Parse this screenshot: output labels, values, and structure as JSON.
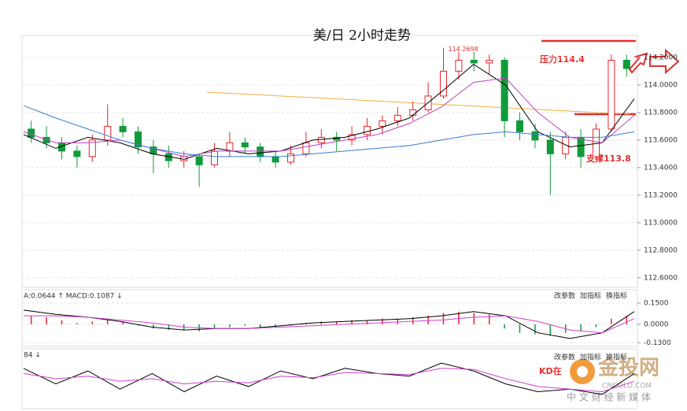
{
  "chart_data": [
    {
      "type": "candlestick",
      "title": "美/日 2小时走势",
      "open": [
        113.68,
        113.62,
        113.58,
        113.52,
        113.48,
        113.6,
        113.7,
        113.66,
        113.55,
        113.5,
        113.45,
        113.48,
        113.42,
        113.52,
        113.58,
        113.55,
        113.48,
        113.44,
        113.5,
        113.58,
        113.62,
        113.6,
        113.64,
        113.7,
        113.74,
        113.78,
        113.82,
        113.92,
        114.1,
        114.18,
        114.16,
        114.18,
        113.74,
        113.66,
        113.6,
        113.5,
        113.62,
        113.48,
        113.68,
        114.18
      ],
      "high": [
        113.74,
        113.7,
        113.62,
        113.56,
        113.64,
        113.86,
        113.76,
        113.7,
        113.6,
        113.56,
        113.52,
        113.5,
        113.58,
        113.66,
        113.62,
        113.58,
        113.52,
        113.56,
        113.66,
        113.68,
        113.66,
        113.7,
        113.76,
        113.78,
        113.84,
        113.88,
        114.02,
        114.27,
        114.24,
        114.24,
        114.22,
        114.2,
        113.8,
        113.72,
        113.66,
        113.66,
        113.68,
        113.72,
        114.22,
        114.22
      ],
      "low": [
        113.58,
        113.54,
        113.46,
        113.4,
        113.44,
        113.56,
        113.62,
        113.5,
        113.36,
        113.4,
        113.4,
        113.26,
        113.4,
        113.48,
        113.5,
        113.44,
        113.4,
        113.42,
        113.48,
        113.54,
        113.52,
        113.56,
        113.6,
        113.64,
        113.7,
        113.74,
        113.8,
        113.9,
        114.04,
        114.1,
        114.08,
        113.62,
        113.6,
        113.54,
        113.2,
        113.46,
        113.4,
        113.46,
        113.66,
        114.06
      ],
      "close": [
        113.62,
        113.58,
        113.52,
        113.48,
        113.6,
        113.7,
        113.66,
        113.55,
        113.5,
        113.45,
        113.48,
        113.42,
        113.52,
        113.58,
        113.55,
        113.48,
        113.44,
        113.5,
        113.58,
        113.62,
        113.6,
        113.64,
        113.7,
        113.74,
        113.78,
        113.82,
        113.92,
        114.1,
        114.18,
        114.16,
        114.18,
        113.74,
        113.66,
        113.6,
        113.5,
        113.62,
        113.48,
        113.68,
        114.18,
        114.12
      ],
      "up_color": "#e8262a",
      "down_color": "#119a3a",
      "series": [
        {
          "color": "#000000",
          "values": [
            113.64,
            113.54,
            113.62,
            113.58,
            113.5,
            113.46,
            113.54,
            113.5,
            113.52,
            113.6,
            113.62,
            113.68,
            113.76,
            113.95,
            114.15,
            114.0,
            113.66,
            113.55,
            113.58,
            113.9
          ]
        },
        {
          "color": "#c040c0",
          "values": [
            113.66,
            113.58,
            113.58,
            113.6,
            113.54,
            113.48,
            113.52,
            113.52,
            113.52,
            113.56,
            113.6,
            113.64,
            113.72,
            113.84,
            114.02,
            114.05,
            113.8,
            113.62,
            113.58,
            113.78
          ]
        },
        {
          "color": "#3a7fd0",
          "values": [
            113.85,
            113.76,
            113.68,
            113.6,
            113.54,
            113.5,
            113.48,
            113.48,
            113.48,
            113.5,
            113.52,
            113.54,
            113.56,
            113.6,
            113.64,
            113.66,
            113.64,
            113.62,
            113.62,
            113.66
          ]
        }
      ],
      "ylim": [
        112.53,
        114.36
      ],
      "yticks": [
        {
          "value": 114.2,
          "label": "114.2000"
        },
        {
          "value": 114.0,
          "label": "114.0000"
        },
        {
          "value": 113.8,
          "label": "113.8000"
        },
        {
          "value": 113.6,
          "label": "113.6000"
        },
        {
          "value": 113.4,
          "label": "113.4000"
        },
        {
          "value": 113.2,
          "label": "113.2000"
        },
        {
          "value": 113.0,
          "label": "113.0000"
        },
        {
          "value": 112.8,
          "label": "112.8000"
        },
        {
          "value": 112.6,
          "label": "112.6000"
        }
      ],
      "grid": true,
      "peak_label": "114.2698",
      "resistance_label": "压力114.4",
      "support_label": "支撑113.8"
    },
    {
      "type": "macd",
      "header": "A:0.0644 ↑ MACD:0.1087 ↓",
      "toolbar": [
        "改参数",
        "加指标",
        "换指标"
      ],
      "values": [
        0.06,
        0.05,
        0.03,
        0.01,
        0.02,
        0.03,
        0.02,
        -0.01,
        -0.03,
        -0.04,
        -0.04,
        -0.05,
        -0.03,
        -0.02,
        -0.01,
        -0.02,
        -0.02,
        -0.01,
        0.01,
        0.02,
        0.02,
        0.03,
        0.03,
        0.04,
        0.04,
        0.05,
        0.06,
        0.08,
        0.09,
        0.08,
        0.07,
        -0.03,
        -0.06,
        -0.07,
        -0.08,
        -0.06,
        -0.05,
        -0.02,
        0.04,
        0.06
      ],
      "up_color": "#e8262a",
      "down_color": "#119a3a",
      "series": [
        {
          "color": "#000000",
          "values": [
            0.1,
            0.07,
            0.05,
            0.02,
            -0.02,
            -0.04,
            -0.03,
            -0.03,
            -0.01,
            0.01,
            0.02,
            0.03,
            0.04,
            0.06,
            0.09,
            0.06,
            -0.06,
            -0.1,
            -0.06,
            0.09
          ]
        },
        {
          "color": "#d040d0",
          "values": [
            0.06,
            0.06,
            0.05,
            0.03,
            0.01,
            -0.02,
            -0.03,
            -0.03,
            -0.02,
            -0.01,
            0.0,
            0.01,
            0.02,
            0.03,
            0.05,
            0.06,
            0.02,
            -0.04,
            -0.06,
            0.04
          ]
        }
      ],
      "ylim": [
        -0.156,
        0.233
      ],
      "yticks": [
        {
          "value": 0.15,
          "label": "0.1500"
        },
        {
          "value": 0,
          "label": "0.0000"
        },
        {
          "value": -0.13,
          "label": "-0.1300"
        }
      ]
    },
    {
      "type": "line",
      "header": "84 ↓",
      "toolbar": [
        "改参数",
        "加指标",
        "换指标"
      ],
      "series": [
        {
          "color": "#000000",
          "values": [
            70,
            40,
            65,
            30,
            60,
            25,
            55,
            35,
            65,
            50,
            70,
            60,
            55,
            80,
            65,
            40,
            25,
            30,
            20,
            60
          ]
        },
        {
          "color": "#d040d0",
          "values": [
            60,
            50,
            55,
            45,
            50,
            40,
            45,
            42,
            55,
            52,
            62,
            60,
            58,
            70,
            68,
            50,
            35,
            30,
            25,
            45
          ]
        }
      ],
      "ylim": [
        0,
        100
      ],
      "annotation": "KD在"
    }
  ],
  "watermark": {
    "name": "金投网",
    "site": "CNGOLD.COM",
    "slogan": "中 文 财 经 新 媒 体"
  }
}
